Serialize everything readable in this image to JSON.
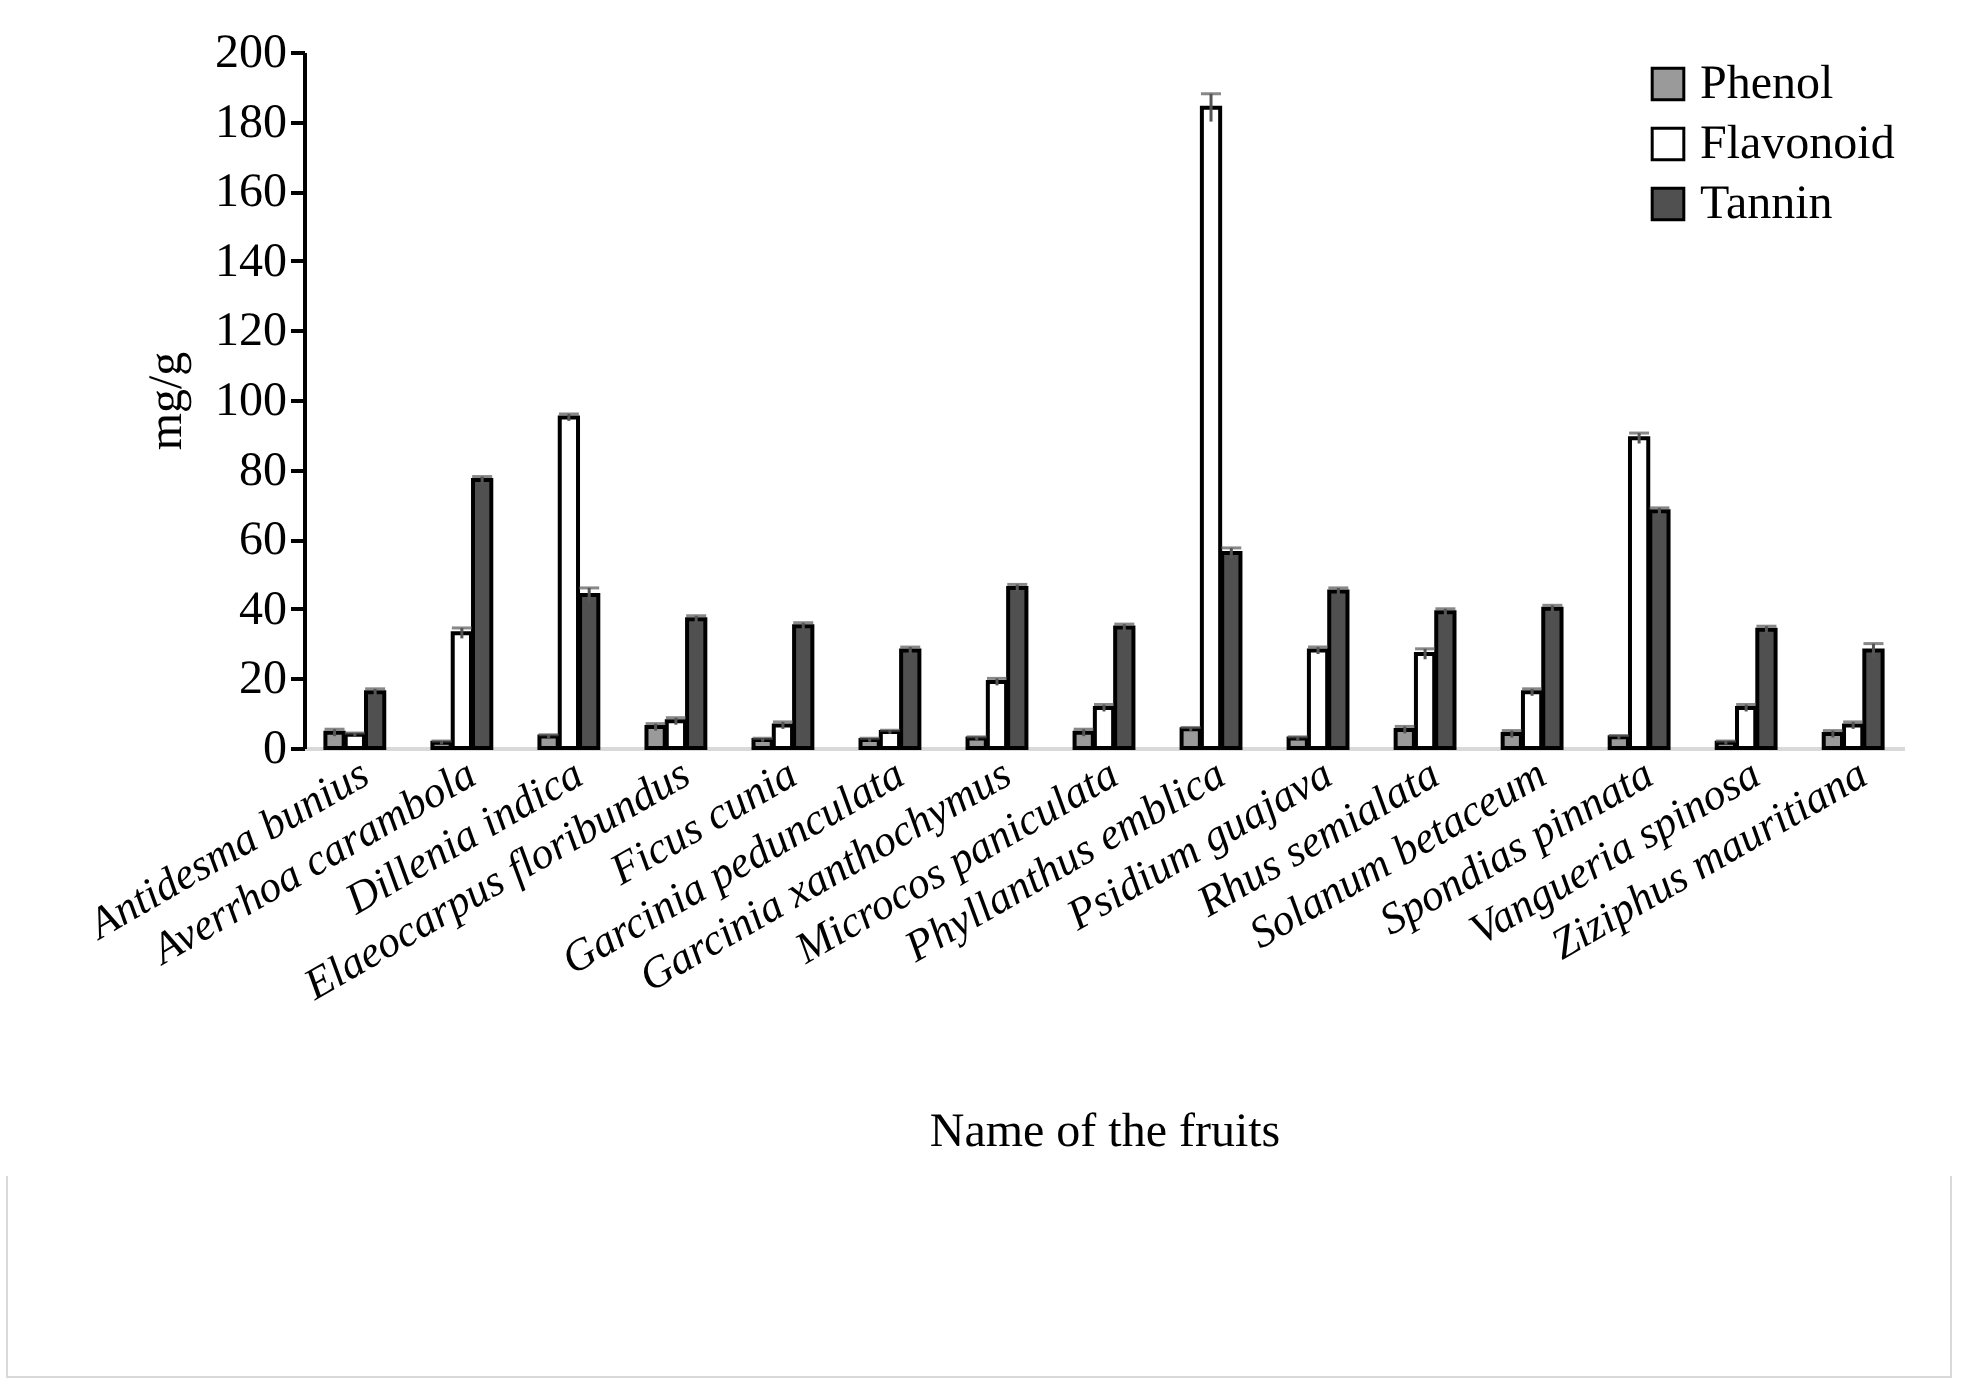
{
  "chart_data": {
    "type": "bar",
    "xlabel": "Name of the fruits",
    "ylabel": "mg/g",
    "categories": [
      "Antidesma bunius",
      "Averrhoa carambola",
      "Dillenia indica",
      "Elaeocarpus floribundus",
      "Ficus cunia",
      "Garcinia pedunculata",
      "Garcinia xanthochymus",
      "Microcos paniculata",
      "Phyllanthus emblica",
      "Psidium guajava",
      "Rhus semialata",
      "Solanum betaceum",
      "Spondias pinnata",
      "Vangueria spinosa",
      "Ziziphus mauritiana"
    ],
    "series": [
      {
        "name": "Phenol",
        "color": "#9a9a9a",
        "values": [
          4.4,
          1.5,
          3.3,
          6,
          2.3,
          2.3,
          2.7,
          4.4,
          5.4,
          2.7,
          5.2,
          4,
          3.1,
          1.5,
          4
        ],
        "errors": [
          1,
          0.5,
          0.5,
          1,
          0.5,
          0.5,
          0.5,
          1,
          0.5,
          0.5,
          1,
          1,
          0.5,
          0.5,
          1
        ]
      },
      {
        "name": "Flavonoid",
        "color": "#ffffff",
        "values": [
          3.8,
          33,
          95,
          7.7,
          6.5,
          4.6,
          19,
          11.5,
          184,
          28,
          27,
          16,
          89,
          11.5,
          6.5
        ],
        "errors": [
          0.5,
          1.5,
          1,
          1,
          1,
          0.5,
          1,
          1,
          4,
          1,
          1.5,
          1,
          1.5,
          1,
          1
        ]
      },
      {
        "name": "Tannin",
        "color": "#505050",
        "values": [
          16,
          77,
          44,
          37,
          35,
          28,
          46,
          34.6,
          56,
          45,
          39,
          40,
          68,
          34,
          28
        ],
        "errors": [
          1,
          1,
          2,
          1,
          1,
          1,
          1,
          1,
          1.5,
          1,
          1,
          1,
          1,
          1,
          2
        ]
      }
    ],
    "ylim": [
      0,
      200
    ],
    "yticks": [
      0,
      20,
      40,
      60,
      80,
      100,
      120,
      140,
      160,
      180,
      200
    ],
    "legend": "top right"
  }
}
